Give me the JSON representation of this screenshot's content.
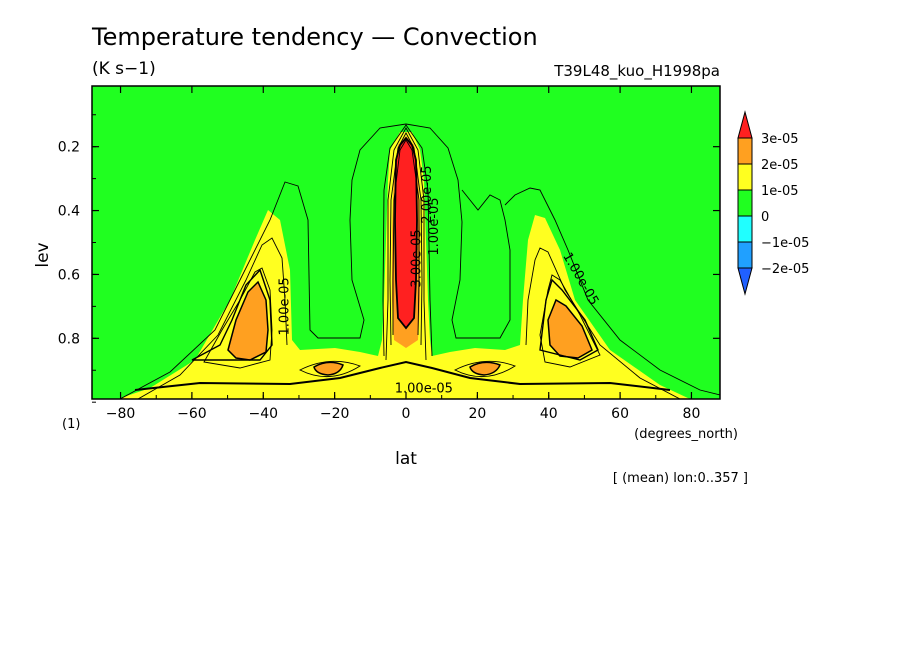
{
  "chart_data": {
    "type": "heatmap",
    "title": "Temperature tendency — Convection",
    "subtitle_left": "(K s−1)",
    "subtitle_right": "T39L48_kuo_H1998pa",
    "xlabel": "lat",
    "x_units": "(degrees_north)",
    "ylabel": "lev",
    "y_units": "(1)",
    "footer": "[ (mean) lon:0..357 ]",
    "xlim": [
      -88,
      88
    ],
    "ylim": [
      0.99,
      0.01
    ],
    "x_ticks": [
      -80,
      -60,
      -40,
      -20,
      0,
      20,
      40,
      60,
      80
    ],
    "y_ticks": [
      0.2,
      0.4,
      0.6,
      0.8
    ],
    "colorbar": {
      "levels": [
        "3e-05",
        "2e-05",
        "1e-05",
        "0",
        "−1e-05",
        "−2e-05"
      ],
      "colors": [
        "#ff2020",
        "#ffa020",
        "#ffff20",
        "#20ff20",
        "#20ffff",
        "#20a0ff",
        "#2060ff"
      ]
    },
    "contour_labels": [
      {
        "text": "1.00e-05",
        "x": -33,
        "y": 0.7,
        "angle": -90
      },
      {
        "text": "1.00e-05",
        "x": 5,
        "y": 0.97,
        "angle": 0
      },
      {
        "text": "3.00e-05",
        "x": 4,
        "y": 0.55,
        "angle": -90
      },
      {
        "text": "2.00e-05",
        "x": 7,
        "y": 0.35,
        "angle": -90
      },
      {
        "text": "1.00e-05",
        "x": 9,
        "y": 0.45,
        "angle": -90
      },
      {
        "text": "1.00e-05",
        "x": 48,
        "y": 0.62,
        "angle": 60
      }
    ]
  }
}
